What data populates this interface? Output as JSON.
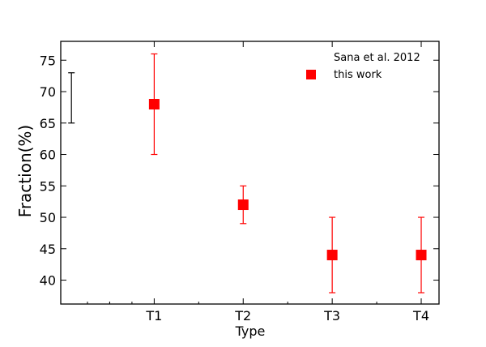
{
  "chart_data": {
    "type": "scatter",
    "xlabel": "Type",
    "ylabel": "Fraction(%)",
    "x_categories": [
      "T1",
      "T2",
      "T3",
      "T4"
    ],
    "xlim": [
      -0.05,
      4.2
    ],
    "ylim": [
      36.2,
      78
    ],
    "yticks": [
      40,
      45,
      50,
      55,
      60,
      65,
      70,
      75
    ],
    "grid": false,
    "legend_position": "top-right",
    "series": [
      {
        "name": "Sana et al. 2012",
        "color": "#000000",
        "marker": "none",
        "points": [
          {
            "x": 0.07,
            "y": 69,
            "err_low": 65,
            "err_high": 73
          }
        ]
      },
      {
        "name": "this work",
        "color": "#ff0000",
        "marker": "square",
        "points": [
          {
            "x": "T1",
            "y": 68,
            "err_low": 60,
            "err_high": 76
          },
          {
            "x": "T2",
            "y": 52,
            "err_low": 49,
            "err_high": 55
          },
          {
            "x": "T3",
            "y": 44,
            "err_low": 38,
            "err_high": 50
          },
          {
            "x": "T4",
            "y": 44,
            "err_low": 38,
            "err_high": 50
          }
        ]
      }
    ]
  }
}
